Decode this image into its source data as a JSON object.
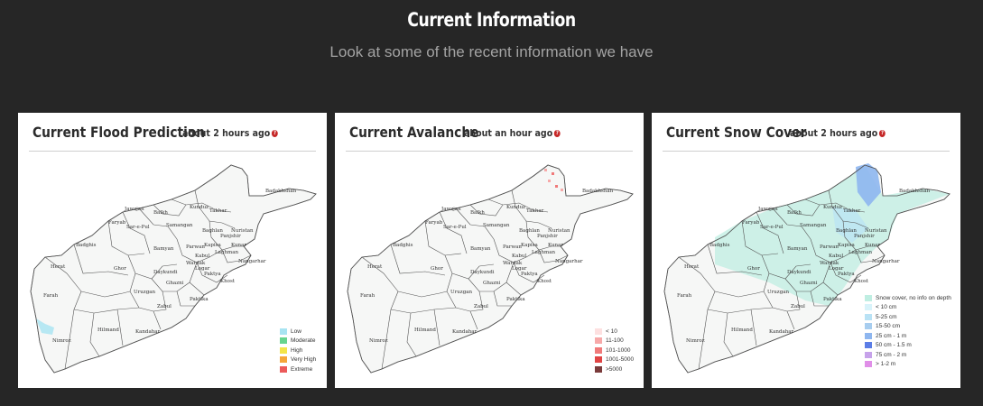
{
  "header": {
    "title": "Current Information",
    "subtitle": "Look at some of the recent information we have"
  },
  "cards": [
    {
      "title": "Current Flood Prediction",
      "time": "about 2 hours ago",
      "legend": [
        {
          "label": "Low",
          "color": "#a8e4f2"
        },
        {
          "label": "Moderate",
          "color": "#66d48f"
        },
        {
          "label": "High",
          "color": "#f3e54a"
        },
        {
          "label": "Very High",
          "color": "#f5a63a"
        },
        {
          "label": "Extreme",
          "color": "#ec5a5a"
        }
      ]
    },
    {
      "title": "Current Avalanche",
      "time": "about an hour ago",
      "legend": [
        {
          "label": "< 10",
          "color": "#fde0e0"
        },
        {
          "label": "11-100",
          "color": "#f7a9a9"
        },
        {
          "label": "101-1000",
          "color": "#f07a7a"
        },
        {
          "label": "1001-5000",
          "color": "#e04444"
        },
        {
          "label": ">5000",
          "color": "#7a3b3b"
        }
      ]
    },
    {
      "title": "Current Snow Cover",
      "time": "about 2 hours ago",
      "legend": [
        {
          "label": "Snow cover, no info on depth",
          "color": "#bfeee2"
        },
        {
          "label": "< 10 cm",
          "color": "#d8f3fa"
        },
        {
          "label": "5-25 cm",
          "color": "#b9e2f5"
        },
        {
          "label": "15-50 cm",
          "color": "#a7cdef"
        },
        {
          "label": "25 cm - 1 m",
          "color": "#8eb6ef"
        },
        {
          "label": "50 cm - 1.5 m",
          "color": "#5b7de6"
        },
        {
          "label": "75 cm - 2 m",
          "color": "#c6a2ea"
        },
        {
          "label": "> 1-2 m",
          "color": "#e08fe8"
        }
      ]
    }
  ],
  "map_labels": [
    "Badakhshan",
    "Jawzjan",
    "Balkh",
    "Kunduz",
    "Takhar",
    "Faryab",
    "Samangan",
    "Sar-e-Pul",
    "Baghlan",
    "Panjshir",
    "Badghis",
    "Bamyan",
    "Parwan",
    "Kapisa",
    "Kunar",
    "Laghman",
    "Nuristan",
    "Kabul",
    "Wardak",
    "Nangarhar",
    "Herat",
    "Ghor",
    "Daykundi",
    "Logar",
    "Paktya",
    "Ghazni",
    "Khost",
    "Uruzgan",
    "Farah",
    "Zabul",
    "Paktika",
    "Nimroz",
    "Hilmand",
    "Kandahar"
  ],
  "help_glyph": "?"
}
